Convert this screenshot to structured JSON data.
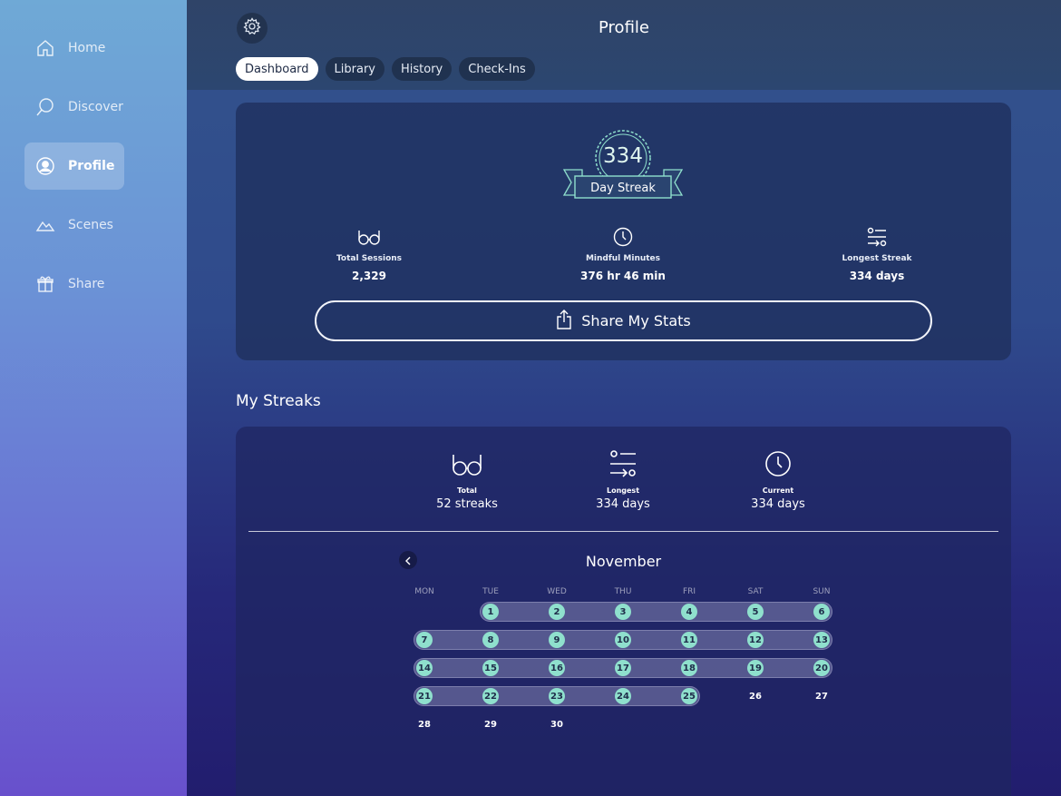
{
  "sidebar": {
    "items": [
      {
        "label": "Home",
        "icon": "home-icon",
        "active": false
      },
      {
        "label": "Discover",
        "icon": "search-icon",
        "active": false
      },
      {
        "label": "Profile",
        "icon": "profile-icon",
        "active": true
      },
      {
        "label": "Scenes",
        "icon": "mountain-icon",
        "active": false
      },
      {
        "label": "Share",
        "icon": "gift-icon",
        "active": false
      }
    ]
  },
  "header": {
    "title": "Profile",
    "tabs": [
      {
        "label": "Dashboard",
        "active": true
      },
      {
        "label": "Library",
        "active": false
      },
      {
        "label": "History",
        "active": false
      },
      {
        "label": "Check-Ins",
        "active": false
      }
    ]
  },
  "dashboard": {
    "badge": {
      "number": "334",
      "label": "Day Streak"
    },
    "stats": [
      {
        "icon": "glasses-icon",
        "label": "Total Sessions",
        "value": "2,329"
      },
      {
        "icon": "clock-icon",
        "label": "Mindful Minutes",
        "value": "376 hr 46 min"
      },
      {
        "icon": "sliders-icon",
        "label": "Longest Streak",
        "value": "334 days"
      }
    ],
    "share_label": "Share My Stats"
  },
  "streaks": {
    "title": "My Streaks",
    "stats": [
      {
        "icon": "glasses-icon",
        "label": "Total",
        "value": "52 streaks"
      },
      {
        "icon": "sliders-icon",
        "label": "Longest",
        "value": "334 days"
      },
      {
        "icon": "clock-icon",
        "label": "Current",
        "value": "334 days"
      }
    ]
  },
  "calendar": {
    "month": "November",
    "weekdays": [
      "MON",
      "TUE",
      "WED",
      "THU",
      "FRI",
      "SAT",
      "SUN"
    ],
    "first_weekday_index": 1,
    "days_in_month": 30,
    "streak_days": [
      1,
      2,
      3,
      4,
      5,
      6,
      7,
      8,
      9,
      10,
      11,
      12,
      13,
      14,
      15,
      16,
      17,
      18,
      19,
      20,
      21,
      22,
      23,
      24,
      25
    ],
    "accent_color": "#8fe0cd"
  }
}
